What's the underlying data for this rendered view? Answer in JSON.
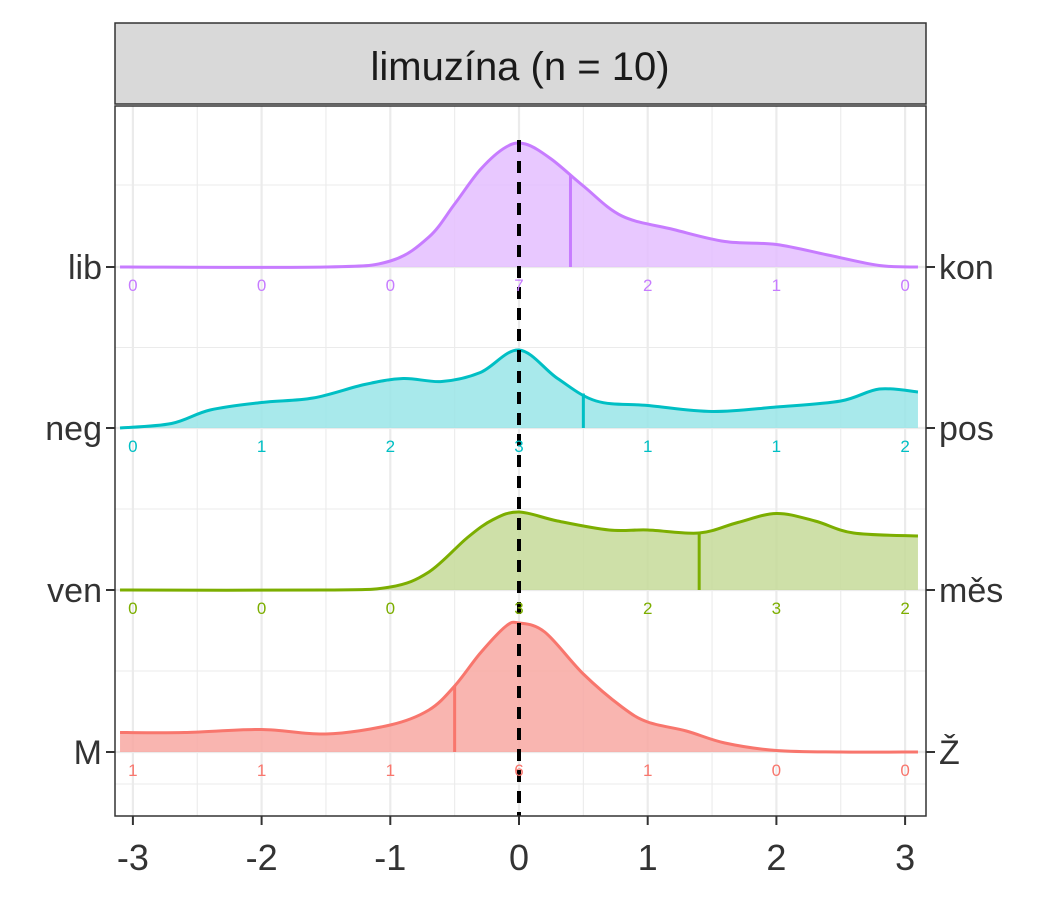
{
  "chart_data": {
    "type": "area",
    "title": "limuzína (n = 10)",
    "xlabel": "",
    "ylabel": "",
    "xlim": [
      -3.1,
      3.1
    ],
    "x_ticks": [
      "-3",
      "-2",
      "-1",
      "0",
      "1",
      "2",
      "3"
    ],
    "reference_line_x": 0,
    "grid": true,
    "count_positions": [
      -3,
      -2,
      -1,
      0,
      1,
      2,
      3
    ],
    "series": [
      {
        "left_label": "M",
        "right_label": "Ž",
        "color": "#F8766D",
        "fill": "#F8A8A2",
        "mean": -0.5,
        "counts": [
          "1",
          "1",
          "1",
          "6",
          "1",
          "0",
          "0"
        ],
        "density": [
          [
            -3.1,
            0.13
          ],
          [
            -2.6,
            0.13
          ],
          [
            -2.0,
            0.15
          ],
          [
            -1.5,
            0.12
          ],
          [
            -1.0,
            0.18
          ],
          [
            -0.7,
            0.28
          ],
          [
            -0.5,
            0.44
          ],
          [
            -0.3,
            0.66
          ],
          [
            -0.1,
            0.84
          ],
          [
            0.0,
            0.86
          ],
          [
            0.2,
            0.8
          ],
          [
            0.5,
            0.52
          ],
          [
            0.8,
            0.3
          ],
          [
            1.0,
            0.2
          ],
          [
            1.3,
            0.14
          ],
          [
            1.6,
            0.06
          ],
          [
            2.0,
            0.01
          ],
          [
            2.5,
            0.0
          ],
          [
            3.1,
            0.0
          ]
        ]
      },
      {
        "left_label": "ven",
        "right_label": "měs",
        "color": "#7CAE00",
        "fill": "#C5DB99",
        "mean": 1.4,
        "counts": [
          "0",
          "0",
          "0",
          "3",
          "2",
          "3",
          "2"
        ],
        "density": [
          [
            -3.1,
            0.0
          ],
          [
            -1.5,
            0.0
          ],
          [
            -1.0,
            0.02
          ],
          [
            -0.7,
            0.12
          ],
          [
            -0.4,
            0.35
          ],
          [
            -0.2,
            0.47
          ],
          [
            0.0,
            0.52
          ],
          [
            0.3,
            0.46
          ],
          [
            0.7,
            0.4
          ],
          [
            1.0,
            0.4
          ],
          [
            1.4,
            0.38
          ],
          [
            1.7,
            0.45
          ],
          [
            2.0,
            0.51
          ],
          [
            2.3,
            0.46
          ],
          [
            2.6,
            0.38
          ],
          [
            3.1,
            0.36
          ]
        ]
      },
      {
        "left_label": "neg",
        "right_label": "pos",
        "color": "#00BFC4",
        "fill": "#99E5E7",
        "mean": 0.5,
        "counts": [
          "0",
          "1",
          "2",
          "3",
          "1",
          "1",
          "2"
        ],
        "density": [
          [
            -3.1,
            0.0
          ],
          [
            -2.7,
            0.03
          ],
          [
            -2.4,
            0.12
          ],
          [
            -2.0,
            0.17
          ],
          [
            -1.6,
            0.2
          ],
          [
            -1.2,
            0.29
          ],
          [
            -0.9,
            0.33
          ],
          [
            -0.6,
            0.31
          ],
          [
            -0.3,
            0.37
          ],
          [
            0.0,
            0.52
          ],
          [
            0.3,
            0.33
          ],
          [
            0.6,
            0.18
          ],
          [
            1.0,
            0.15
          ],
          [
            1.5,
            0.11
          ],
          [
            2.0,
            0.14
          ],
          [
            2.5,
            0.18
          ],
          [
            2.8,
            0.26
          ],
          [
            3.1,
            0.24
          ]
        ]
      },
      {
        "left_label": "lib",
        "right_label": "kon",
        "color": "#C77CFF",
        "fill": "#E4BEFF",
        "mean": 0.4,
        "counts": [
          "0",
          "0",
          "0",
          "7",
          "2",
          "1",
          "0"
        ],
        "density": [
          [
            -3.1,
            0.0
          ],
          [
            -1.5,
            0.0
          ],
          [
            -1.0,
            0.04
          ],
          [
            -0.7,
            0.2
          ],
          [
            -0.5,
            0.42
          ],
          [
            -0.3,
            0.65
          ],
          [
            -0.1,
            0.8
          ],
          [
            0.05,
            0.82
          ],
          [
            0.25,
            0.72
          ],
          [
            0.5,
            0.54
          ],
          [
            0.8,
            0.34
          ],
          [
            1.2,
            0.25
          ],
          [
            1.6,
            0.17
          ],
          [
            2.0,
            0.15
          ],
          [
            2.4,
            0.08
          ],
          [
            2.8,
            0.01
          ],
          [
            3.1,
            0.0
          ]
        ]
      }
    ]
  }
}
